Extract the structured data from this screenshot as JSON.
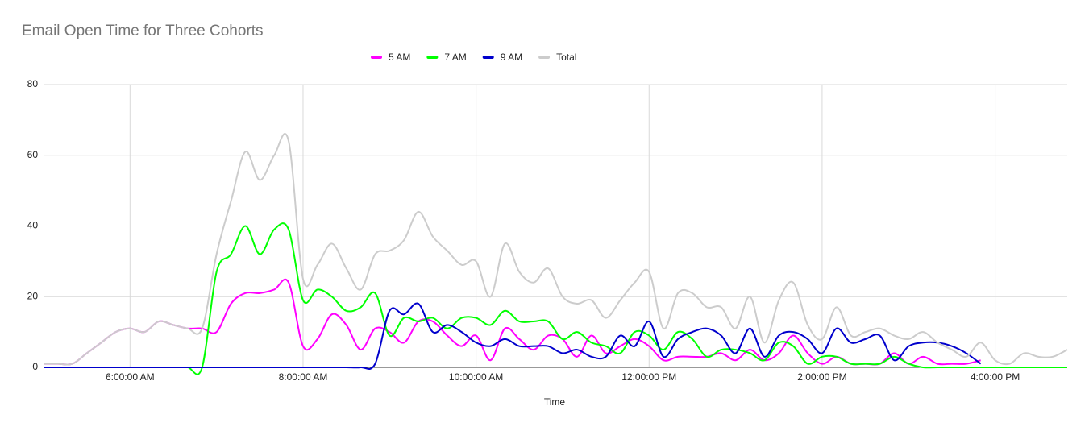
{
  "chart_data": {
    "type": "line",
    "title": "Email Open Time for Three Cohorts",
    "x_label": "Time",
    "x": [
      300,
      310,
      320,
      330,
      340,
      350,
      360,
      370,
      380,
      390,
      400,
      410,
      420,
      430,
      440,
      450,
      460,
      470,
      480,
      490,
      500,
      510,
      520,
      530,
      540,
      550,
      560,
      570,
      580,
      590,
      600,
      610,
      620,
      630,
      640,
      650,
      660,
      670,
      680,
      690,
      700,
      710,
      720,
      730,
      740,
      750,
      760,
      770,
      780,
      790,
      800,
      810,
      820,
      830,
      840,
      850,
      860,
      870,
      880,
      890,
      900,
      910,
      920,
      930,
      940,
      950,
      960,
      970,
      980,
      990,
      1000,
      1010
    ],
    "xlim": [
      300,
      1010
    ],
    "xticks": [
      {
        "value": 360,
        "label": "6:00:00 AM"
      },
      {
        "value": 480,
        "label": "8:00:00 AM"
      },
      {
        "value": 600,
        "label": "10:00:00 AM"
      },
      {
        "value": 720,
        "label": "12:00:00 PM"
      },
      {
        "value": 840,
        "label": "2:00:00 PM"
      },
      {
        "value": 960,
        "label": "4:00:00 PM"
      }
    ],
    "ylim": [
      0,
      80
    ],
    "yticks": [
      0,
      20,
      40,
      60,
      80
    ],
    "grid": true,
    "legend": "top",
    "series": [
      {
        "name": "5 AM",
        "color": "#ff00ff",
        "values": [
          1,
          1,
          1,
          4,
          7,
          10,
          11,
          10,
          13,
          12,
          11,
          11,
          10,
          18,
          21,
          21,
          22,
          24,
          6,
          8,
          15,
          12,
          5,
          11,
          10,
          7,
          13,
          13,
          9,
          6,
          9,
          2,
          11,
          8,
          5,
          9,
          8,
          3,
          9,
          4,
          6,
          8,
          6,
          2,
          3,
          3,
          3,
          4,
          2,
          5,
          2,
          4,
          9,
          4,
          1,
          3,
          1,
          1,
          1,
          4,
          1,
          3,
          1,
          1,
          1,
          2,
          null,
          null,
          null,
          null,
          null,
          null
        ]
      },
      {
        "name": "7 AM",
        "color": "#00ff00",
        "values": [
          0,
          0,
          0,
          0,
          0,
          0,
          0,
          0,
          0,
          0,
          0,
          0,
          27,
          32,
          40,
          32,
          39,
          39,
          19,
          22,
          20,
          16,
          17,
          21,
          9,
          14,
          13,
          14,
          11,
          14,
          14,
          12,
          16,
          13,
          13,
          13,
          8,
          10,
          7,
          6,
          4,
          10,
          9,
          5,
          10,
          8,
          3,
          5,
          5,
          4,
          2,
          7,
          6,
          1,
          3,
          3,
          1,
          1,
          1,
          3,
          1,
          0,
          0,
          0,
          0,
          0,
          0,
          0,
          0,
          0,
          0,
          0
        ]
      },
      {
        "name": "9 AM",
        "color": "#0000cc",
        "values": [
          0,
          0,
          0,
          0,
          0,
          0,
          0,
          0,
          0,
          0,
          0,
          0,
          0,
          0,
          0,
          0,
          0,
          0,
          0,
          0,
          0,
          0,
          0,
          1,
          16,
          15,
          18,
          10,
          12,
          10,
          7,
          6,
          8,
          6,
          6,
          6,
          4,
          5,
          3,
          3,
          9,
          6,
          13,
          3,
          8,
          10,
          11,
          9,
          4,
          11,
          3,
          9,
          10,
          8,
          4,
          11,
          7,
          8,
          9,
          2,
          6,
          7,
          7,
          6,
          4,
          1,
          null,
          null,
          null,
          null,
          null,
          null
        ]
      },
      {
        "name": "Total",
        "color": "#cccccc",
        "values": [
          1,
          1,
          1,
          4,
          7,
          10,
          11,
          10,
          13,
          12,
          11,
          11,
          32,
          47,
          61,
          53,
          60,
          64,
          25,
          29,
          35,
          28,
          22,
          32,
          33,
          36,
          44,
          37,
          33,
          29,
          30,
          20,
          35,
          27,
          24,
          28,
          20,
          18,
          19,
          14,
          19,
          24,
          27,
          11,
          21,
          21,
          17,
          17,
          11,
          20,
          7,
          19,
          24,
          12,
          8,
          17,
          9,
          10,
          11,
          9,
          8,
          10,
          7,
          5,
          3,
          7,
          2,
          1,
          4,
          3,
          3,
          5
        ]
      }
    ]
  }
}
